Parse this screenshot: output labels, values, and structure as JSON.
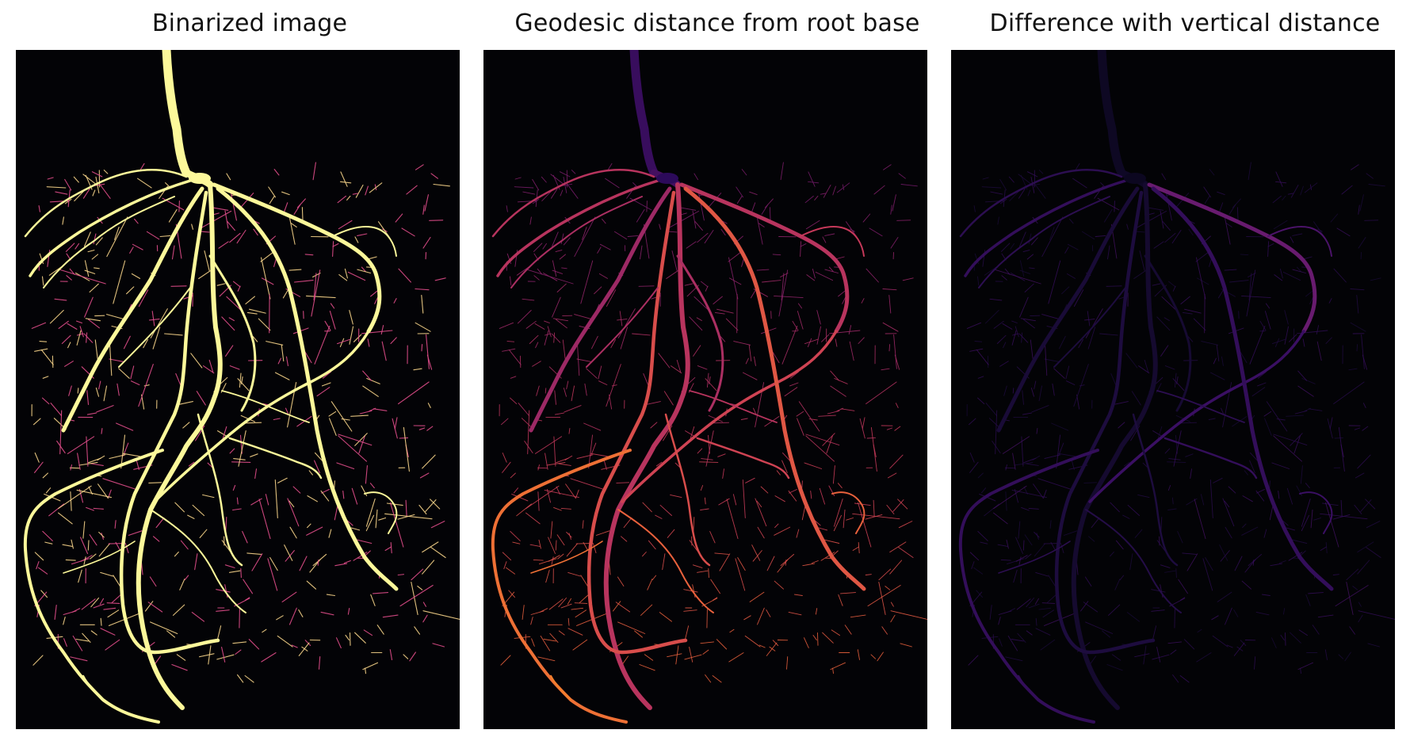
{
  "figure": {
    "panels": [
      {
        "id": "binarized",
        "title": "Binarized image",
        "colormap": "inferno",
        "colors": {
          "root": "#fcf89a",
          "root_fine": "#f9d58a",
          "hair": "#e04d8a",
          "hair2": "#b8377a"
        }
      },
      {
        "id": "geodesic",
        "title": "Geodesic distance from root base",
        "colormap": "inferno",
        "colors": {
          "near": "#2c0a5a",
          "mid_low": "#5b1466",
          "mid": "#8f2469",
          "mid_high": "#c6395a",
          "high": "#e9613c",
          "far": "#fb9d1e",
          "hair": "#a42b73"
        }
      },
      {
        "id": "difference",
        "title": "Difference with vertical distance",
        "colormap": "inferno",
        "colors": {
          "near": "#0c0720",
          "low": "#1d0c3e",
          "mid": "#3a0f63",
          "mid_high": "#5c176e",
          "high": "#8c2570",
          "peak": "#dd4e57"
        }
      }
    ]
  }
}
